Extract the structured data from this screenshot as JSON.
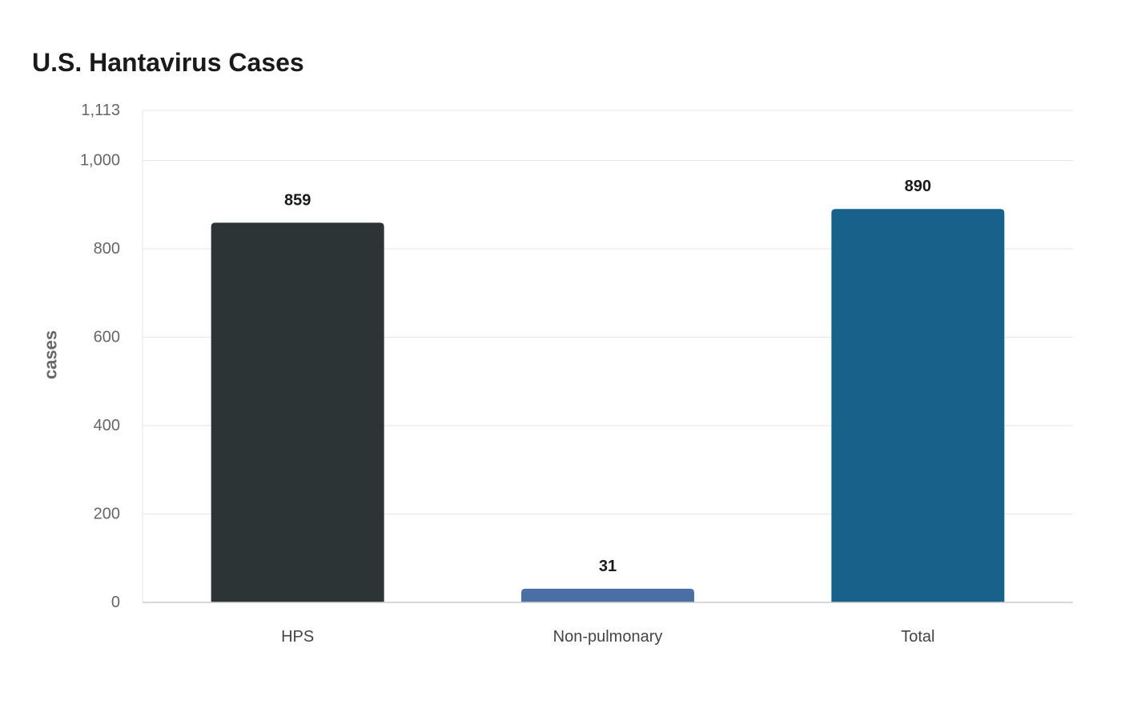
{
  "chart_data": {
    "type": "bar",
    "title": "U.S. Hantavirus Cases",
    "xlabel": "",
    "ylabel": "cases",
    "categories": [
      "HPS",
      "Non-pulmonary",
      "Total"
    ],
    "values": [
      859,
      31,
      890
    ],
    "value_labels": [
      "859",
      "31",
      "890"
    ],
    "colors": [
      "#2d3436",
      "#4a6fa5",
      "#17628a"
    ],
    "ylim": [
      0,
      1113
    ],
    "yticks": [
      0,
      200,
      400,
      600,
      800,
      1000,
      1113
    ],
    "ytick_labels": [
      "0",
      "200",
      "400",
      "600",
      "800",
      "1,000",
      "1,113"
    ],
    "grid": true,
    "legend": "none"
  }
}
